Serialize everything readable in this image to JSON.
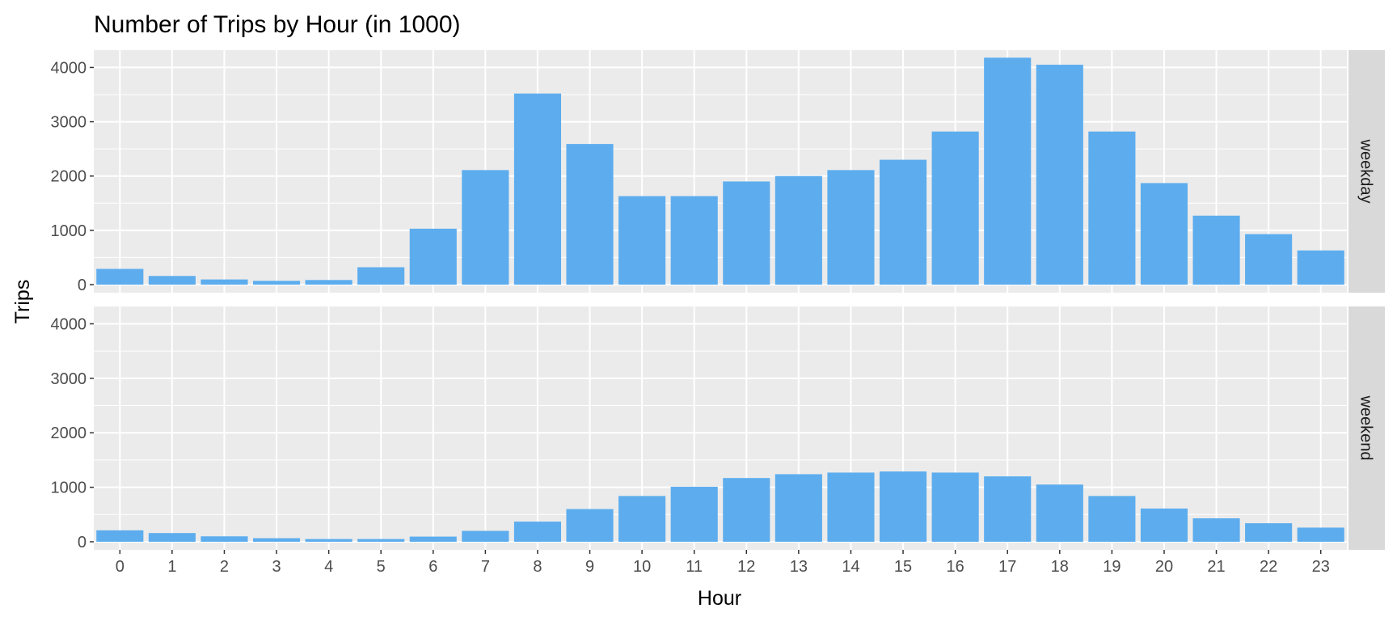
{
  "chart_data": {
    "type": "bar",
    "title": "Number of Trips by Hour (in 1000)",
    "xlabel": "Hour",
    "ylabel": "Trips",
    "categories": [
      "0",
      "1",
      "2",
      "3",
      "4",
      "5",
      "6",
      "7",
      "8",
      "9",
      "10",
      "11",
      "12",
      "13",
      "14",
      "15",
      "16",
      "17",
      "18",
      "19",
      "20",
      "21",
      "22",
      "23"
    ],
    "ylim": [
      0,
      4200
    ],
    "yticks": [
      0,
      1000,
      2000,
      3000,
      4000
    ],
    "bar_color": "#5DADEE",
    "panel_background": "#EBEBEB",
    "strip_background": "#D9D9D9",
    "grid": true,
    "legend": "none",
    "panels": [
      {
        "label": "weekday",
        "values": [
          290,
          160,
          95,
          70,
          85,
          320,
          1030,
          2110,
          3520,
          2590,
          1630,
          1630,
          1900,
          2000,
          2110,
          2300,
          2820,
          4180,
          4050,
          2820,
          1870,
          1270,
          930,
          630
        ]
      },
      {
        "label": "weekend",
        "values": [
          210,
          160,
          100,
          65,
          50,
          50,
          95,
          200,
          370,
          600,
          840,
          1010,
          1170,
          1240,
          1270,
          1290,
          1270,
          1200,
          1050,
          840,
          610,
          430,
          340,
          260
        ]
      }
    ]
  }
}
